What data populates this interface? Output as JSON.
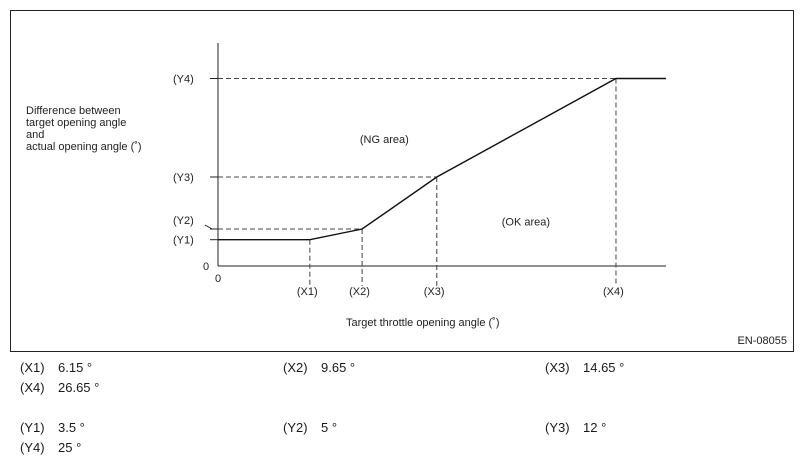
{
  "chart_data": {
    "type": "line",
    "xlabel": "Target throttle opening angle (˚)",
    "ylabel_lines": [
      "Difference between",
      "target opening angle",
      "and",
      "actual opening angle (˚)"
    ],
    "x": [
      0,
      6.15,
      9.65,
      14.65,
      26.65,
      30
    ],
    "y": [
      3.5,
      3.5,
      5,
      12,
      25,
      25
    ],
    "xlim": [
      0,
      30
    ],
    "ylim": [
      0,
      30
    ],
    "origin_x_label": "0",
    "origin_y_label": "0",
    "x_ticks": [
      {
        "label": "(X1)",
        "value": 6.15
      },
      {
        "label": "(X2)",
        "value": 9.65
      },
      {
        "label": "(X3)",
        "value": 14.65
      },
      {
        "label": "(X4)",
        "value": 26.65
      }
    ],
    "y_ticks": [
      {
        "label": "(Y1)",
        "value": 3.5
      },
      {
        "label": "(Y2)",
        "value": 5
      },
      {
        "label": "(Y3)",
        "value": 12
      },
      {
        "label": "(Y4)",
        "value": 25
      }
    ],
    "annotations": [
      {
        "text": "(NG area)",
        "x": 9.5,
        "y": 17
      },
      {
        "text": "(OK area)",
        "x": 19,
        "y": 6
      }
    ],
    "grid": false,
    "legend": "none"
  },
  "figure_id": "EN-08055",
  "legend_rows": [
    [
      {
        "key": "(X1)",
        "val": "6.15 °"
      },
      {
        "key": "(X2)",
        "val": "9.65 °"
      },
      {
        "key": "(X3)",
        "val": "14.65 °"
      }
    ],
    [
      {
        "key": "(X4)",
        "val": "26.65 °"
      }
    ],
    [
      {
        "key": "(Y1)",
        "val": "3.5 °"
      },
      {
        "key": "(Y2)",
        "val": "5 °"
      },
      {
        "key": "(Y3)",
        "val": "12 °"
      }
    ],
    [
      {
        "key": "(Y4)",
        "val": "25 °"
      }
    ]
  ]
}
